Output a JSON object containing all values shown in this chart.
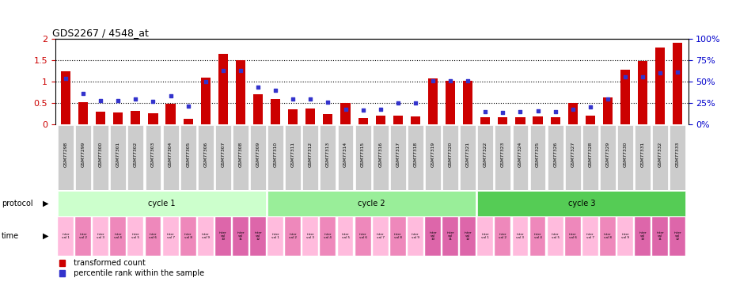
{
  "title": "GDS2267 / 4548_at",
  "gsm_labels": [
    "GSM77298",
    "GSM77299",
    "GSM77300",
    "GSM77301",
    "GSM77302",
    "GSM77303",
    "GSM77304",
    "GSM77305",
    "GSM77306",
    "GSM77307",
    "GSM77308",
    "GSM77309",
    "GSM77310",
    "GSM77311",
    "GSM77312",
    "GSM77313",
    "GSM77314",
    "GSM77315",
    "GSM77316",
    "GSM77317",
    "GSM77318",
    "GSM77319",
    "GSM77320",
    "GSM77321",
    "GSM77322",
    "GSM77323",
    "GSM77324",
    "GSM77325",
    "GSM77326",
    "GSM77327",
    "GSM77328",
    "GSM77329",
    "GSM77330",
    "GSM77331",
    "GSM77332",
    "GSM77333"
  ],
  "bar_values": [
    1.25,
    0.52,
    0.3,
    0.29,
    0.32,
    0.26,
    0.48,
    0.13,
    1.09,
    1.65,
    1.5,
    0.7,
    0.6,
    0.35,
    0.38,
    0.25,
    0.5,
    0.15,
    0.22,
    0.22,
    0.19,
    1.08,
    1.02,
    1.02,
    0.18,
    0.17,
    0.18,
    0.2,
    0.17,
    0.5,
    0.22,
    0.63,
    1.27,
    1.48,
    1.8,
    1.9
  ],
  "dot_values": [
    54,
    36,
    28,
    28,
    30,
    27,
    34,
    22,
    50,
    63,
    63,
    44,
    40,
    30,
    30,
    26,
    18,
    17,
    18,
    25,
    25,
    51,
    51,
    51,
    15,
    14,
    15,
    16,
    15,
    18,
    21,
    30,
    56,
    56,
    60,
    61
  ],
  "bar_color": "#cc0000",
  "dot_color": "#3333cc",
  "ylim_left": [
    0,
    2.0
  ],
  "ylim_right": [
    0,
    100
  ],
  "yticks_left": [
    0,
    0.5,
    1.0,
    1.5,
    2.0
  ],
  "ytick_labels_left": [
    "0",
    "0.5",
    "1",
    "1.5",
    "2"
  ],
  "yticks_right": [
    0,
    25,
    50,
    75,
    100
  ],
  "ytick_labels_right": [
    "0%",
    "25%",
    "50%",
    "75%",
    "100%"
  ],
  "hlines": [
    0.5,
    1.0,
    1.5
  ],
  "cycle1_color": "#ccffcc",
  "cycle2_color": "#99ee99",
  "cycle3_color": "#55cc55",
  "time_pink_light": "#ffbbdd",
  "time_pink_dark": "#ee88bb",
  "time_pink_special": "#dd66aa"
}
